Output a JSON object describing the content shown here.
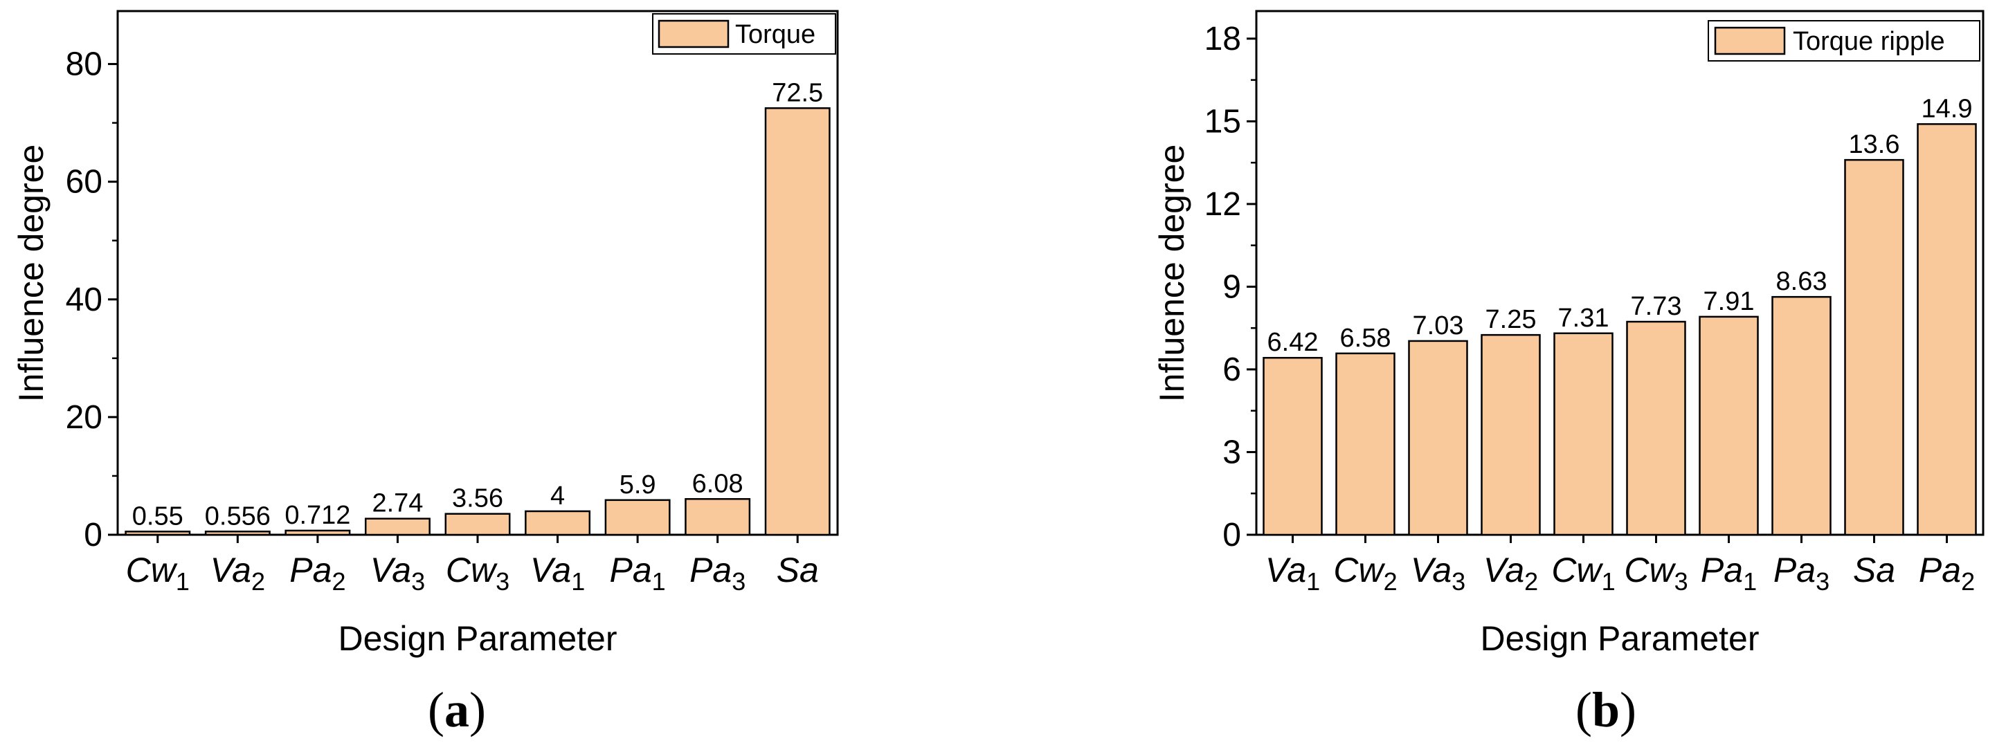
{
  "chart_data": [
    {
      "type": "bar",
      "panel_label": "a",
      "xlabel": "Design Parameter",
      "ylabel": "Influence degree",
      "ylim": [
        0,
        89
      ],
      "yticks": [
        0,
        20,
        40,
        60,
        80
      ],
      "legend": "Torque",
      "legend_position": "top-right",
      "bar_color": "#f9c89b",
      "categories": [
        {
          "base": "Cw",
          "sub": "1"
        },
        {
          "base": "Va",
          "sub": "2"
        },
        {
          "base": "Pa",
          "sub": "2"
        },
        {
          "base": "Va",
          "sub": "3"
        },
        {
          "base": "Cw",
          "sub": "3"
        },
        {
          "base": "Va",
          "sub": "1"
        },
        {
          "base": "Pa",
          "sub": "1"
        },
        {
          "base": "Pa",
          "sub": "3"
        },
        {
          "base": "Sa",
          "sub": ""
        }
      ],
      "values": [
        0.55,
        0.556,
        0.712,
        2.74,
        3.56,
        4,
        5.9,
        6.08,
        72.5
      ],
      "value_labels": [
        "0.55",
        "0.556",
        "0.712",
        "2.74",
        "3.56",
        "4",
        "5.9",
        "6.08",
        "72.5"
      ]
    },
    {
      "type": "bar",
      "panel_label": "b",
      "xlabel": "Design Parameter",
      "ylabel": "Influence degree",
      "ylim": [
        0,
        19
      ],
      "yticks": [
        0,
        3,
        6,
        9,
        12,
        15,
        18
      ],
      "legend": "Torque ripple",
      "legend_position": "top-right",
      "bar_color": "#f9c89b",
      "categories": [
        {
          "base": "Va",
          "sub": "1"
        },
        {
          "base": "Cw",
          "sub": "2"
        },
        {
          "base": "Va",
          "sub": "3"
        },
        {
          "base": "Va",
          "sub": "2"
        },
        {
          "base": "Cw",
          "sub": "1"
        },
        {
          "base": "Cw",
          "sub": "3"
        },
        {
          "base": "Pa",
          "sub": "1"
        },
        {
          "base": "Pa",
          "sub": "3"
        },
        {
          "base": "Sa",
          "sub": ""
        },
        {
          "base": "Pa",
          "sub": "2"
        }
      ],
      "values": [
        6.42,
        6.58,
        7.03,
        7.25,
        7.31,
        7.73,
        7.91,
        8.63,
        13.6,
        14.9
      ],
      "value_labels": [
        "6.42",
        "6.58",
        "7.03",
        "7.25",
        "7.31",
        "7.73",
        "7.91",
        "8.63",
        "13.6",
        "14.9"
      ]
    }
  ]
}
